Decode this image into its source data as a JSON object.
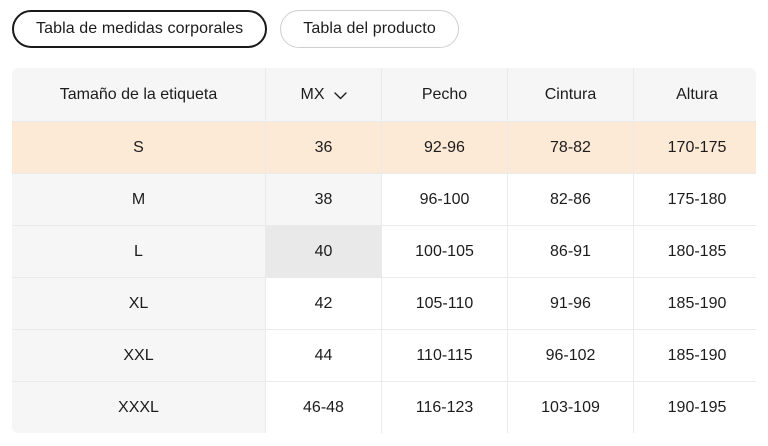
{
  "tabs": [
    {
      "label": "Tabla de medidas corporales",
      "active": true
    },
    {
      "label": "Tabla del producto",
      "active": false
    }
  ],
  "table": {
    "columns": [
      "Tamaño de la etiqueta",
      "MX",
      "Pecho",
      "Cintura",
      "Altura"
    ],
    "mx_header_icon": "chevron-down-icon",
    "rows": [
      {
        "label": "S",
        "mx": "36",
        "pecho": "92-96",
        "cintura": "78-82",
        "altura": "170-175",
        "highlight": "row"
      },
      {
        "label": "M",
        "mx": "38",
        "pecho": "96-100",
        "cintura": "82-86",
        "altura": "175-180",
        "highlight": "mx-soft"
      },
      {
        "label": "L",
        "mx": "40",
        "pecho": "100-105",
        "cintura": "86-91",
        "altura": "180-185",
        "highlight": "mx-strong"
      },
      {
        "label": "XL",
        "mx": "42",
        "pecho": "105-110",
        "cintura": "91-96",
        "altura": "185-190",
        "highlight": "none"
      },
      {
        "label": "XXL",
        "mx": "44",
        "pecho": "110-115",
        "cintura": "96-102",
        "altura": "185-190",
        "highlight": "none"
      },
      {
        "label": "XXXL",
        "mx": "46-48",
        "pecho": "116-123",
        "cintura": "103-109",
        "altura": "190-195",
        "highlight": "none"
      }
    ]
  },
  "colors": {
    "highlight_row": "#fce9d6",
    "cell_gray": "#f6f6f6",
    "cell_gray_strong": "#e9e9e9",
    "border": "#eaeaea",
    "text": "#1c1c1c",
    "tab_active_border": "#1a1a1a",
    "tab_inactive_border": "#cfcfcf"
  }
}
